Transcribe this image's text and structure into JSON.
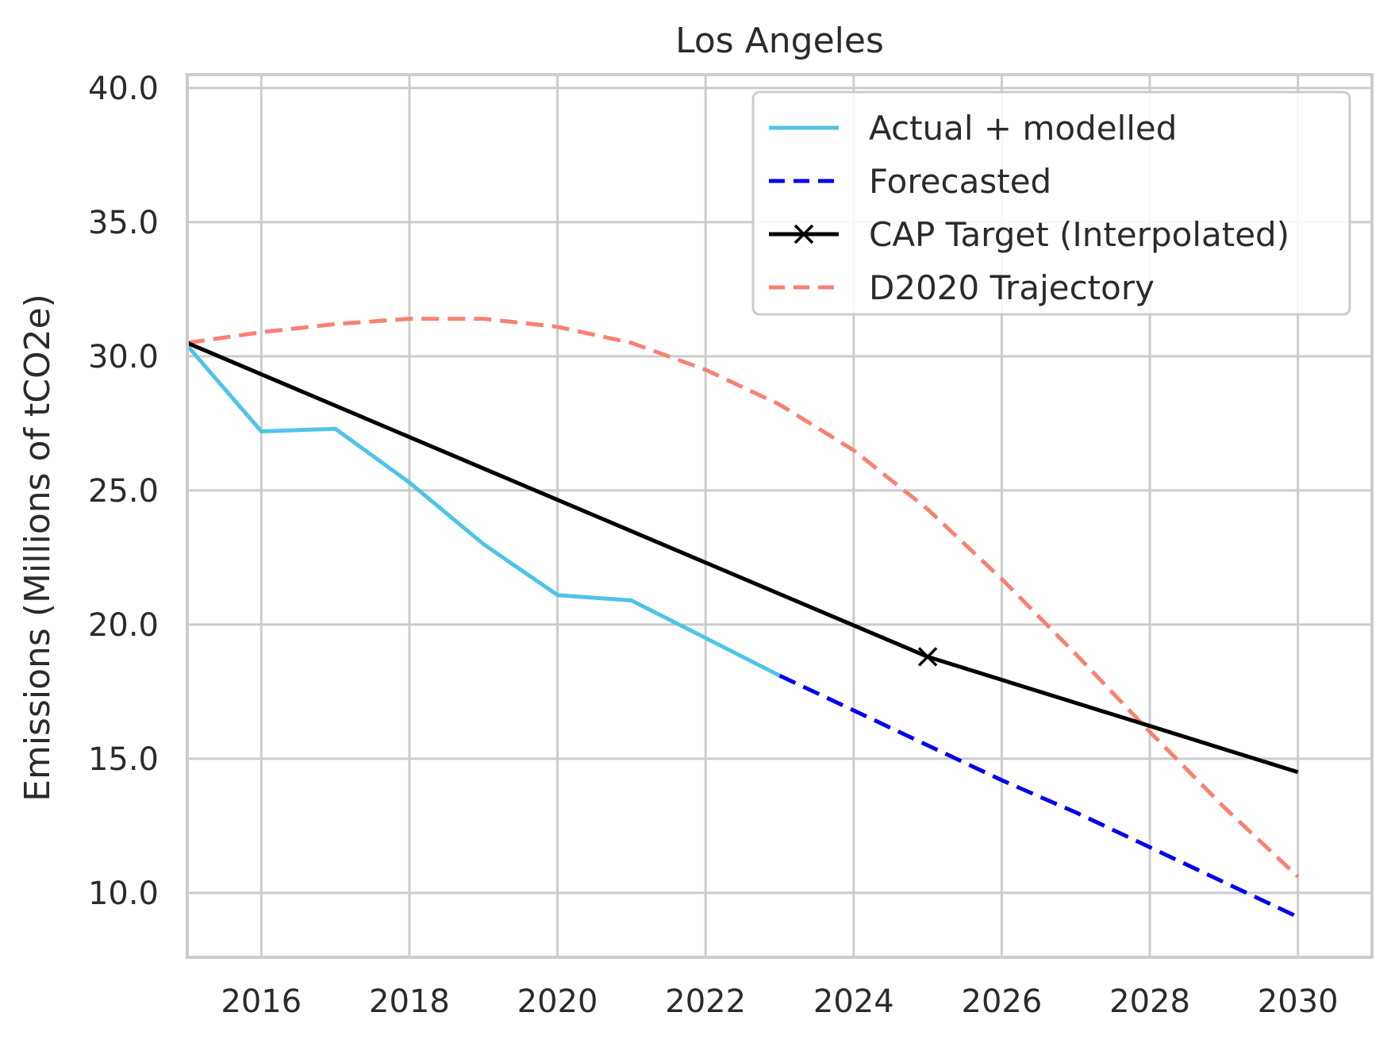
{
  "chart_data": {
    "type": "line",
    "title": "Los Angeles",
    "xlabel": "",
    "ylabel": "Emissions (Millions of tCO2e)",
    "xlim": [
      2015,
      2031
    ],
    "ylim": [
      7.6,
      40.5
    ],
    "xticks": [
      2016,
      2018,
      2020,
      2022,
      2024,
      2026,
      2028,
      2030
    ],
    "xtick_labels": [
      "2016",
      "2018",
      "2020",
      "2022",
      "2024",
      "2026",
      "2028",
      "2030"
    ],
    "yticks": [
      10,
      15,
      20,
      25,
      30,
      35,
      40
    ],
    "ytick_labels": [
      "10.0",
      "15.0",
      "20.0",
      "25.0",
      "30.0",
      "35.0",
      "40.0"
    ],
    "grid": true,
    "legend_position": "top-right",
    "series": [
      {
        "name": "Actual + modelled",
        "color": "#4fc3e8",
        "style": "solid",
        "marker": "none",
        "x": [
          2015,
          2016,
          2017,
          2018,
          2019,
          2020,
          2021,
          2022,
          2023
        ],
        "y": [
          30.4,
          27.2,
          27.3,
          25.3,
          23.0,
          21.1,
          20.9,
          19.5,
          18.1
        ]
      },
      {
        "name": "Forecasted",
        "color": "#0000ee",
        "style": "dashed",
        "marker": "none",
        "x": [
          2023,
          2024,
          2025,
          2026,
          2027,
          2028,
          2029,
          2030
        ],
        "y": [
          18.1,
          16.8,
          15.5,
          14.2,
          13.0,
          11.7,
          10.4,
          9.1
        ]
      },
      {
        "name": "CAP Target (Interpolated)",
        "color": "#000000",
        "style": "solid",
        "marker": "x",
        "marker_x": [
          2025
        ],
        "marker_y": [
          18.8
        ],
        "x": [
          2015,
          2025,
          2030
        ],
        "y": [
          30.5,
          18.8,
          14.5
        ]
      },
      {
        "name": "D2020 Trajectory",
        "color": "#fa8072",
        "style": "dashed",
        "marker": "none",
        "x": [
          2015,
          2016,
          2017,
          2018,
          2019,
          2020,
          2021,
          2022,
          2023,
          2024,
          2025,
          2026,
          2027,
          2028,
          2029,
          2030
        ],
        "y": [
          30.5,
          30.9,
          31.2,
          31.4,
          31.4,
          31.1,
          30.5,
          29.5,
          28.2,
          26.5,
          24.3,
          21.7,
          18.9,
          16.0,
          13.2,
          10.6
        ]
      }
    ]
  }
}
